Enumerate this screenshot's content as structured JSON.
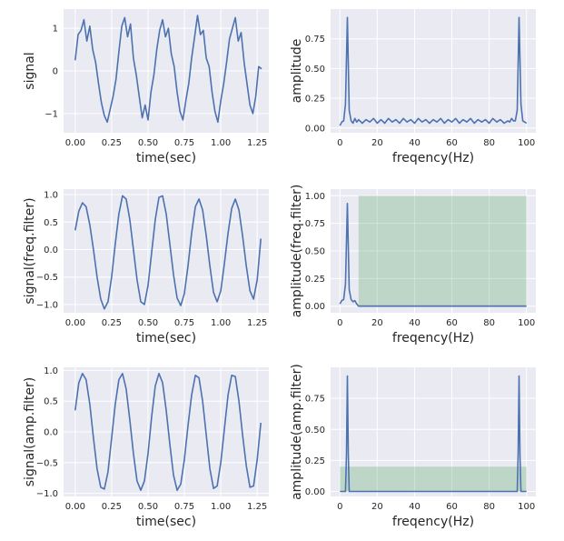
{
  "colors": {
    "series": "#4c72b0",
    "band": "#55a868",
    "plot_bg": "#eaeaf2",
    "grid": "#ffffff"
  },
  "chart_data": [
    {
      "type": "line",
      "id": "time-raw",
      "xlabel": "time(sec)",
      "ylabel": "signal",
      "xlim": [
        -0.08,
        1.33
      ],
      "ylim": [
        -1.45,
        1.45
      ],
      "xticks": [
        0.0,
        0.25,
        0.5,
        0.75,
        1.0,
        1.25
      ],
      "xtick_labels": [
        "0.00",
        "0.25",
        "0.50",
        "0.75",
        "1.00",
        "1.25"
      ],
      "yticks": [
        1,
        0,
        -1
      ],
      "ytick_labels": [
        "1",
        "0",
        "−1"
      ],
      "grid": true,
      "series": [
        {
          "x": [
            0.0,
            0.02,
            0.04,
            0.06,
            0.08,
            0.1,
            0.12,
            0.14,
            0.16,
            0.18,
            0.2,
            0.22,
            0.24,
            0.26,
            0.28,
            0.3,
            0.32,
            0.34,
            0.36,
            0.38,
            0.4,
            0.42,
            0.44,
            0.46,
            0.48,
            0.5,
            0.52,
            0.54,
            0.56,
            0.58,
            0.6,
            0.62,
            0.64,
            0.66,
            0.68,
            0.7,
            0.72,
            0.74,
            0.76,
            0.78,
            0.8,
            0.82,
            0.84,
            0.86,
            0.88,
            0.9,
            0.92,
            0.94,
            0.96,
            0.98,
            1.0,
            1.02,
            1.04,
            1.06,
            1.08,
            1.1,
            1.12,
            1.14,
            1.16,
            1.18,
            1.2,
            1.22,
            1.24,
            1.26,
            1.28
          ],
          "values": [
            0.25,
            0.85,
            0.95,
            1.2,
            0.7,
            1.05,
            0.5,
            0.2,
            -0.3,
            -0.75,
            -1.05,
            -1.2,
            -0.9,
            -0.6,
            -0.2,
            0.45,
            1.05,
            1.25,
            0.8,
            1.1,
            0.3,
            -0.1,
            -0.6,
            -1.1,
            -0.8,
            -1.15,
            -0.5,
            -0.1,
            0.5,
            0.95,
            1.2,
            0.8,
            1.0,
            0.4,
            0.1,
            -0.5,
            -0.95,
            -1.15,
            -0.7,
            -0.3,
            0.3,
            0.8,
            1.3,
            0.85,
            0.95,
            0.3,
            0.1,
            -0.5,
            -0.95,
            -1.2,
            -0.7,
            -0.3,
            0.2,
            0.75,
            1.0,
            1.25,
            0.7,
            0.9,
            0.2,
            -0.3,
            -0.8,
            -1.0,
            -0.6,
            0.1,
            0.05
          ]
        }
      ]
    },
    {
      "type": "line",
      "id": "freq-raw",
      "xlabel": "freqency(Hz)",
      "ylabel": "amplitude",
      "xlim": [
        -5,
        105
      ],
      "ylim": [
        -0.04,
        1.0
      ],
      "xticks": [
        0,
        20,
        40,
        60,
        80,
        100
      ],
      "xtick_labels": [
        "0",
        "20",
        "40",
        "60",
        "80",
        "100"
      ],
      "yticks": [
        0.0,
        0.25,
        0.5,
        0.75
      ],
      "ytick_labels": [
        "0.00",
        "0.25",
        "0.50",
        "0.75"
      ],
      "grid": true,
      "series": [
        {
          "x": [
            0,
            1,
            2,
            3,
            4,
            5,
            6,
            7,
            8,
            9,
            10,
            12,
            14,
            16,
            18,
            20,
            22,
            24,
            26,
            28,
            30,
            32,
            34,
            36,
            38,
            40,
            42,
            44,
            46,
            48,
            50,
            52,
            54,
            56,
            58,
            60,
            62,
            64,
            66,
            68,
            70,
            72,
            74,
            76,
            78,
            80,
            82,
            84,
            86,
            88,
            90,
            91,
            92,
            93,
            94,
            95,
            96,
            97,
            98,
            99,
            100
          ],
          "values": [
            0.02,
            0.05,
            0.06,
            0.2,
            0.93,
            0.15,
            0.06,
            0.04,
            0.08,
            0.05,
            0.07,
            0.04,
            0.07,
            0.05,
            0.08,
            0.04,
            0.07,
            0.04,
            0.08,
            0.05,
            0.07,
            0.04,
            0.08,
            0.05,
            0.07,
            0.04,
            0.08,
            0.05,
            0.07,
            0.04,
            0.07,
            0.05,
            0.08,
            0.04,
            0.07,
            0.05,
            0.08,
            0.04,
            0.07,
            0.05,
            0.08,
            0.04,
            0.07,
            0.05,
            0.07,
            0.04,
            0.08,
            0.05,
            0.07,
            0.04,
            0.06,
            0.05,
            0.08,
            0.06,
            0.06,
            0.15,
            0.93,
            0.2,
            0.06,
            0.05,
            0.04
          ]
        }
      ]
    },
    {
      "type": "line",
      "id": "time-freq-filter",
      "xlabel": "time(sec)",
      "ylabel": "signal(freq.filter)",
      "xlim": [
        -0.08,
        1.33
      ],
      "ylim": [
        -1.15,
        1.1
      ],
      "xticks": [
        0.0,
        0.25,
        0.5,
        0.75,
        1.0,
        1.25
      ],
      "xtick_labels": [
        "0.00",
        "0.25",
        "0.50",
        "0.75",
        "1.00",
        "1.25"
      ],
      "yticks": [
        1.0,
        0.5,
        0.0,
        -0.5,
        -1.0
      ],
      "ytick_labels": [
        "1.0",
        "0.5",
        "0.0",
        "−0.5",
        "−1.0"
      ],
      "grid": true,
      "series": [
        {
          "x": [
            0.0,
            0.025,
            0.05,
            0.075,
            0.1,
            0.125,
            0.15,
            0.175,
            0.2,
            0.225,
            0.25,
            0.275,
            0.3,
            0.325,
            0.35,
            0.375,
            0.4,
            0.425,
            0.45,
            0.475,
            0.5,
            0.525,
            0.55,
            0.575,
            0.6,
            0.625,
            0.65,
            0.675,
            0.7,
            0.725,
            0.75,
            0.775,
            0.8,
            0.825,
            0.85,
            0.875,
            0.9,
            0.925,
            0.95,
            0.975,
            1.0,
            1.025,
            1.05,
            1.075,
            1.1,
            1.125,
            1.15,
            1.175,
            1.2,
            1.225,
            1.25,
            1.275
          ],
          "values": [
            0.35,
            0.7,
            0.85,
            0.78,
            0.45,
            0.0,
            -0.5,
            -0.9,
            -1.08,
            -0.95,
            -0.5,
            0.1,
            0.65,
            0.98,
            0.92,
            0.55,
            0.0,
            -0.55,
            -0.95,
            -1.0,
            -0.65,
            -0.05,
            0.55,
            0.95,
            0.98,
            0.65,
            0.1,
            -0.45,
            -0.88,
            -1.02,
            -0.8,
            -0.3,
            0.3,
            0.78,
            0.92,
            0.72,
            0.25,
            -0.3,
            -0.78,
            -0.95,
            -0.75,
            -0.25,
            0.3,
            0.75,
            0.92,
            0.72,
            0.25,
            -0.3,
            -0.75,
            -0.9,
            -0.55,
            0.2
          ]
        }
      ]
    },
    {
      "type": "line",
      "id": "freq-freq-filter",
      "xlabel": "freqency(Hz)",
      "ylabel": "amplitude(freq.filter)",
      "xlim": [
        -5,
        105
      ],
      "ylim": [
        -0.06,
        1.06
      ],
      "xticks": [
        0,
        20,
        40,
        60,
        80,
        100
      ],
      "xtick_labels": [
        "0",
        "20",
        "40",
        "60",
        "80",
        "100"
      ],
      "yticks": [
        0.0,
        0.25,
        0.5,
        0.75,
        1.0
      ],
      "ytick_labels": [
        "0.00",
        "0.25",
        "0.50",
        "0.75",
        "1.00"
      ],
      "grid": true,
      "band": {
        "x0": 10,
        "x1": 100,
        "y0": 0.0,
        "y1": 1.0
      },
      "series": [
        {
          "x": [
            0,
            1,
            2,
            3,
            4,
            5,
            6,
            7,
            8,
            9,
            10,
            20,
            40,
            60,
            80,
            100
          ],
          "values": [
            0.02,
            0.05,
            0.06,
            0.2,
            0.93,
            0.15,
            0.06,
            0.04,
            0.05,
            0.02,
            0.0,
            0.0,
            0.0,
            0.0,
            0.0,
            0.0
          ]
        }
      ]
    },
    {
      "type": "line",
      "id": "time-amp-filter",
      "xlabel": "time(sec)",
      "ylabel": "signal(amp.filter)",
      "xlim": [
        -0.08,
        1.33
      ],
      "ylim": [
        -1.05,
        1.05
      ],
      "xticks": [
        0.0,
        0.25,
        0.5,
        0.75,
        1.0,
        1.25
      ],
      "xtick_labels": [
        "0.00",
        "0.25",
        "0.50",
        "0.75",
        "1.00",
        "1.25"
      ],
      "yticks": [
        1.0,
        0.5,
        0.0,
        -0.5,
        -1.0
      ],
      "ytick_labels": [
        "1.0",
        "0.5",
        "0.0",
        "−0.5",
        "−1.0"
      ],
      "grid": true,
      "series": [
        {
          "x": [
            0.0,
            0.025,
            0.05,
            0.075,
            0.1,
            0.125,
            0.15,
            0.175,
            0.2,
            0.225,
            0.25,
            0.275,
            0.3,
            0.325,
            0.35,
            0.375,
            0.4,
            0.425,
            0.45,
            0.475,
            0.5,
            0.525,
            0.55,
            0.575,
            0.6,
            0.625,
            0.65,
            0.675,
            0.7,
            0.725,
            0.75,
            0.775,
            0.8,
            0.825,
            0.85,
            0.875,
            0.9,
            0.925,
            0.95,
            0.975,
            1.0,
            1.025,
            1.05,
            1.075,
            1.1,
            1.125,
            1.15,
            1.175,
            1.2,
            1.225,
            1.25,
            1.275
          ],
          "values": [
            0.35,
            0.8,
            0.95,
            0.85,
            0.45,
            -0.1,
            -0.6,
            -0.9,
            -0.93,
            -0.65,
            -0.1,
            0.45,
            0.85,
            0.95,
            0.7,
            0.2,
            -0.35,
            -0.8,
            -0.95,
            -0.8,
            -0.35,
            0.25,
            0.75,
            0.95,
            0.8,
            0.35,
            -0.2,
            -0.7,
            -0.95,
            -0.85,
            -0.45,
            0.1,
            0.6,
            0.92,
            0.88,
            0.5,
            -0.05,
            -0.6,
            -0.92,
            -0.88,
            -0.5,
            0.05,
            0.6,
            0.92,
            0.9,
            0.5,
            -0.05,
            -0.55,
            -0.9,
            -0.88,
            -0.45,
            0.15
          ]
        }
      ]
    },
    {
      "type": "line",
      "id": "freq-amp-filter",
      "xlabel": "freqency(Hz)",
      "ylabel": "amplitude(amp.filter)",
      "xlim": [
        -5,
        105
      ],
      "ylim": [
        -0.04,
        1.0
      ],
      "xticks": [
        0,
        20,
        40,
        60,
        80,
        100
      ],
      "xtick_labels": [
        "0",
        "20",
        "40",
        "60",
        "80",
        "100"
      ],
      "yticks": [
        0.0,
        0.25,
        0.5,
        0.75
      ],
      "ytick_labels": [
        "0.00",
        "0.25",
        "0.50",
        "0.75"
      ],
      "grid": true,
      "band": {
        "x0": 0,
        "x1": 100,
        "y0": 0.0,
        "y1": 0.2
      },
      "series": [
        {
          "x": [
            0,
            1,
            2,
            3,
            3.5,
            4,
            4.5,
            5,
            6,
            10,
            20,
            40,
            60,
            80,
            95,
            95.5,
            96,
            96.5,
            97,
            98,
            100
          ],
          "values": [
            0.0,
            0.0,
            0.0,
            0.0,
            0.3,
            0.93,
            0.3,
            0.0,
            0.0,
            0.0,
            0.0,
            0.0,
            0.0,
            0.0,
            0.0,
            0.3,
            0.93,
            0.3,
            0.0,
            0.0,
            0.0
          ]
        }
      ]
    }
  ]
}
